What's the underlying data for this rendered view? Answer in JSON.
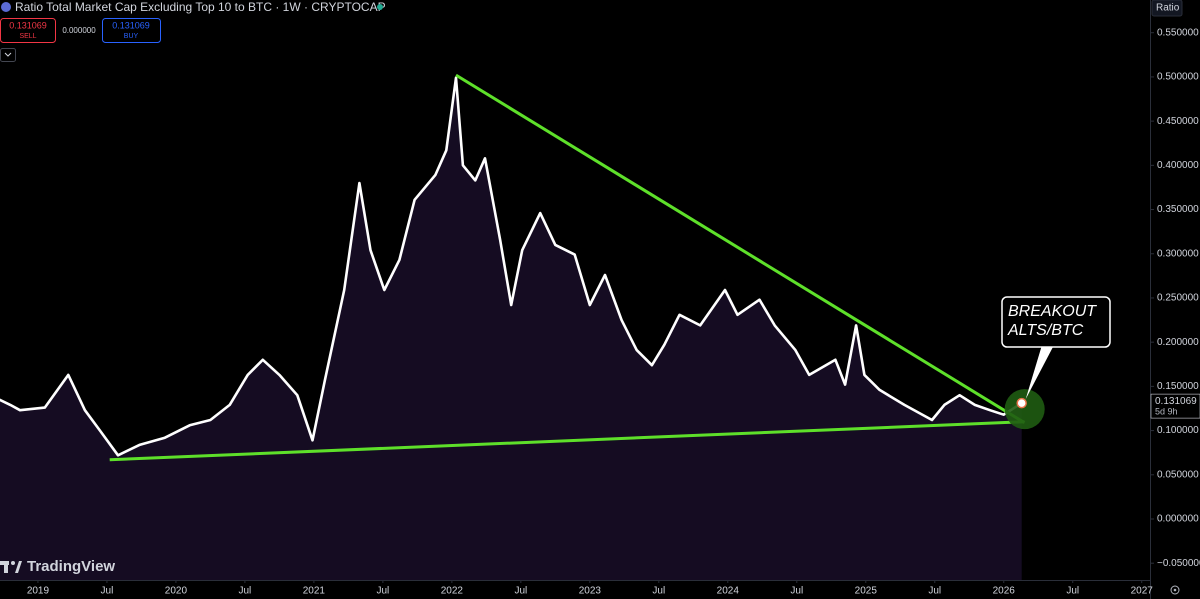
{
  "chart_data": {
    "type": "line",
    "title": "Ratio Total Market Cap Excluding Top 10 to BTC · 1W · CRYPTOCAP",
    "toolbar": {
      "sell_price": "0.131069",
      "sell_label": "SELL",
      "spread": "0.000000",
      "buy_price": "0.131069",
      "buy_label": "BUY"
    },
    "scale_label": "Ratio",
    "countdown": "5d 9h",
    "watermark": "TradingView",
    "annotation": [
      "BREAKOUT",
      "ALTS/BTC"
    ],
    "x": [
      2018.72,
      2018.8,
      2018.87,
      2019.05,
      2019.22,
      2019.34,
      2019.45,
      2019.58,
      2019.74,
      2019.92,
      2020.1,
      2020.25,
      2020.39,
      2020.52,
      2020.63,
      2020.75,
      2020.88,
      2020.99,
      2021.08,
      2021.22,
      2021.33,
      2021.41,
      2021.51,
      2021.62,
      2021.73,
      2021.88,
      2021.96,
      2022.03,
      2022.08,
      2022.17,
      2022.24,
      2022.35,
      2022.43,
      2022.51,
      2022.64,
      2022.75,
      2022.89,
      2023.0,
      2023.11,
      2023.23,
      2023.34,
      2023.45,
      2023.54,
      2023.65,
      2023.8,
      2023.98,
      2024.07,
      2024.23,
      2024.34,
      2024.49,
      2024.59,
      2024.78,
      2024.85,
      2024.93,
      2024.99,
      2025.1,
      2025.28,
      2025.48,
      2025.57,
      2025.68,
      2025.79,
      2025.9,
      2026.0,
      2026.13
    ],
    "series": [
      {
        "color": "#ffffff",
        "fill": "#150c22",
        "values": [
          0.135,
          0.129,
          0.123,
          0.126,
          0.163,
          0.123,
          0.1,
          0.072,
          0.084,
          0.092,
          0.106,
          0.112,
          0.129,
          0.163,
          0.18,
          0.163,
          0.14,
          0.089,
          0.157,
          0.259,
          0.38,
          0.304,
          0.259,
          0.293,
          0.361,
          0.389,
          0.417,
          0.499,
          0.4,
          0.383,
          0.408,
          0.316,
          0.242,
          0.304,
          0.346,
          0.31,
          0.299,
          0.242,
          0.276,
          0.225,
          0.191,
          0.174,
          0.197,
          0.231,
          0.219,
          0.259,
          0.231,
          0.248,
          0.219,
          0.191,
          0.163,
          0.18,
          0.152,
          0.219,
          0.163,
          0.146,
          0.129,
          0.112,
          0.129,
          0.14,
          0.129,
          0.123,
          0.118,
          0.131069
        ]
      }
    ],
    "trendlines": [
      {
        "color": "#5ee02a",
        "x": [
          2022.03,
          2026.15
        ],
        "values": [
          0.502,
          0.109
        ]
      },
      {
        "color": "#5ee02a",
        "x": [
          2019.52,
          2026.15
        ],
        "values": [
          0.067,
          0.11
        ]
      }
    ],
    "xlim": [
      2018.725,
      2027.06
    ],
    "xticks": [
      {
        "value": 2019,
        "label": "2019"
      },
      {
        "value": 2019.5,
        "label": "Jul"
      },
      {
        "value": 2020,
        "label": "2020"
      },
      {
        "value": 2020.5,
        "label": "Jul"
      },
      {
        "value": 2021,
        "label": "2021"
      },
      {
        "value": 2021.5,
        "label": "Jul"
      },
      {
        "value": 2022,
        "label": "2022"
      },
      {
        "value": 2022.5,
        "label": "Jul"
      },
      {
        "value": 2023,
        "label": "2023"
      },
      {
        "value": 2023.5,
        "label": "Jul"
      },
      {
        "value": 2024,
        "label": "2024"
      },
      {
        "value": 2024.5,
        "label": "Jul"
      },
      {
        "value": 2025,
        "label": "2025"
      },
      {
        "value": 2025.5,
        "label": "Jul"
      },
      {
        "value": 2026,
        "label": "2026"
      },
      {
        "value": 2026.5,
        "label": "Jul"
      },
      {
        "value": 2027,
        "label": "2027"
      }
    ],
    "ylim": [
      -0.069,
      0.587
    ],
    "yticks": [
      {
        "value": 0.55,
        "label": "0.550000"
      },
      {
        "value": 0.5,
        "label": "0.500000"
      },
      {
        "value": 0.45,
        "label": "0.450000"
      },
      {
        "value": 0.4,
        "label": "0.400000"
      },
      {
        "value": 0.35,
        "label": "0.350000"
      },
      {
        "value": 0.3,
        "label": "0.300000"
      },
      {
        "value": 0.25,
        "label": "0.250000"
      },
      {
        "value": 0.2,
        "label": "0.200000"
      },
      {
        "value": 0.15,
        "label": "0.150000"
      },
      {
        "value": 0.1,
        "label": "0.100000"
      },
      {
        "value": 0.05,
        "label": "0.050000"
      },
      {
        "value": 0,
        "label": "0.000000"
      },
      {
        "value": -0.05,
        "label": "−0.050000"
      }
    ],
    "grid": false
  }
}
